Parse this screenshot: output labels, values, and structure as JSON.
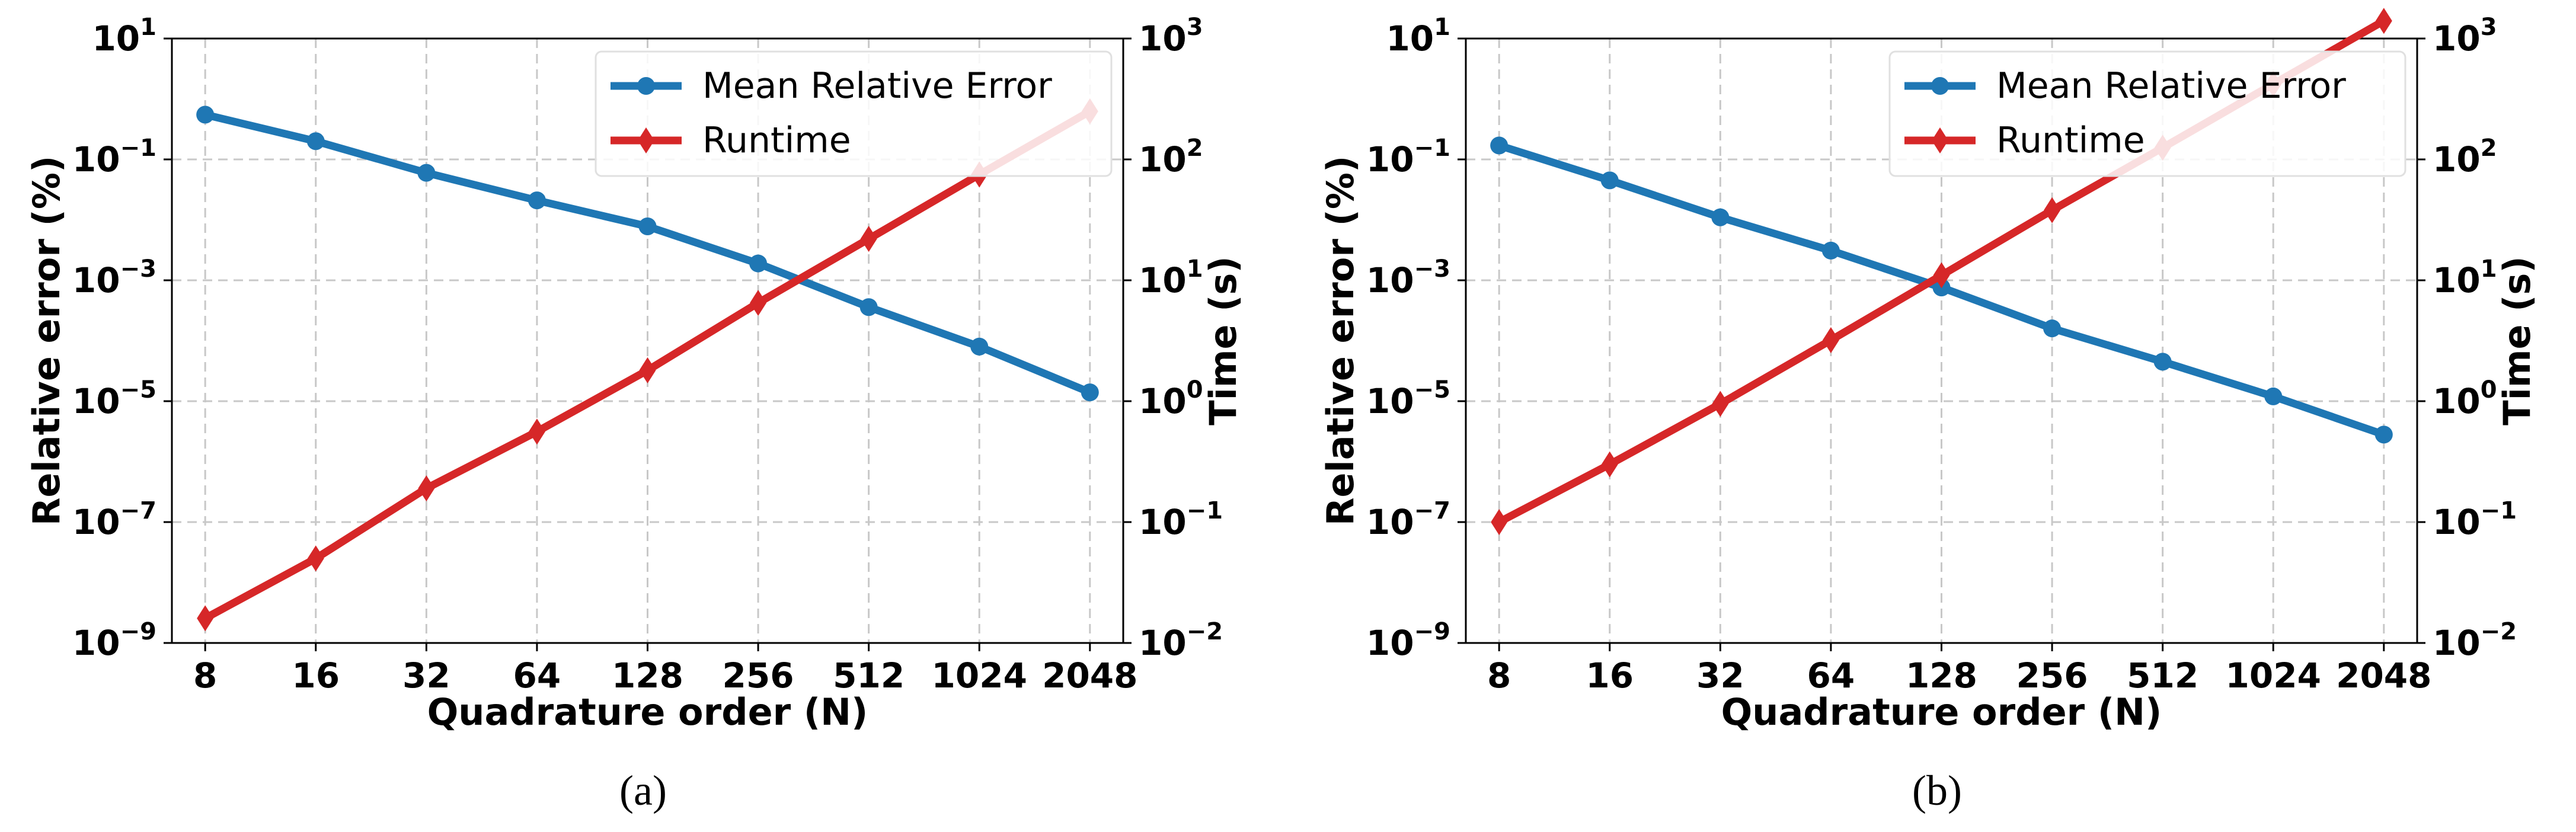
{
  "chart_data": [
    {
      "type": "line",
      "caption": "(a)",
      "x": [
        8,
        16,
        32,
        64,
        128,
        256,
        512,
        1024,
        2048
      ],
      "x_tick_labels": [
        "8",
        "16",
        "32",
        "64",
        "128",
        "256",
        "512",
        "1024",
        "2048"
      ],
      "xlabel": "Quadrature order (N)",
      "ylabel_left": "Relative error (%)",
      "ylabel_right": "Time (s)",
      "y_left_scale": "log",
      "y_left_lim": [
        1e-09,
        10
      ],
      "y_left_ticks": [
        1e-09,
        1e-07,
        1e-05,
        0.001,
        0.1,
        10
      ],
      "y_left_tick_exponents": [
        "−9",
        "−7",
        "−5",
        "−3",
        "−1",
        "1"
      ],
      "y_right_scale": "log",
      "y_right_lim": [
        0.01,
        1000
      ],
      "y_right_ticks": [
        0.01,
        0.1,
        1,
        10,
        100,
        1000
      ],
      "y_right_tick_exponents": [
        "−2",
        "−1",
        "0",
        "1",
        "2",
        "3"
      ],
      "tick_base": "10",
      "grid": true,
      "legend_placement": "top-right",
      "series": [
        {
          "name": "Mean Relative Error",
          "axis": "left",
          "color": "#1f77b4",
          "marker": "circle",
          "values": [
            0.55,
            0.2,
            0.06,
            0.021,
            0.0078,
            0.0019,
            0.00036,
            8e-05,
            1.4e-05
          ]
        },
        {
          "name": "Runtime",
          "axis": "right",
          "color": "#d62728",
          "marker": "diamond",
          "values": [
            0.016,
            0.05,
            0.19,
            0.56,
            1.8,
            6.5,
            22,
            75,
            250
          ]
        }
      ]
    },
    {
      "type": "line",
      "caption": "(b)",
      "x": [
        8,
        16,
        32,
        64,
        128,
        256,
        512,
        1024,
        2048
      ],
      "x_tick_labels": [
        "8",
        "16",
        "32",
        "64",
        "128",
        "256",
        "512",
        "1024",
        "2048"
      ],
      "xlabel": "Quadrature order (N)",
      "ylabel_left": "Relative error (%)",
      "ylabel_right": "Time (s)",
      "y_left_scale": "log",
      "y_left_lim": [
        1e-09,
        10
      ],
      "y_left_ticks": [
        1e-09,
        1e-07,
        1e-05,
        0.001,
        0.1,
        10
      ],
      "y_left_tick_exponents": [
        "−9",
        "−7",
        "−5",
        "−3",
        "−1",
        "1"
      ],
      "y_right_scale": "log",
      "y_right_lim": [
        0.01,
        1000
      ],
      "y_right_ticks": [
        0.01,
        0.1,
        1,
        10,
        100,
        1000
      ],
      "y_right_tick_exponents": [
        "−2",
        "−1",
        "0",
        "1",
        "2",
        "3"
      ],
      "tick_base": "10",
      "grid": true,
      "legend_placement": "top-right",
      "series": [
        {
          "name": "Mean Relative Error",
          "axis": "left",
          "color": "#1f77b4",
          "marker": "circle",
          "values": [
            0.17,
            0.045,
            0.011,
            0.0031,
            0.00076,
            0.00016,
            4.5e-05,
            1.2e-05,
            2.8e-06
          ]
        },
        {
          "name": "Runtime",
          "axis": "right",
          "color": "#d62728",
          "marker": "diamond",
          "values": [
            0.1,
            0.3,
            0.95,
            3.2,
            11,
            38,
            125,
            420,
            1400
          ]
        }
      ]
    }
  ]
}
